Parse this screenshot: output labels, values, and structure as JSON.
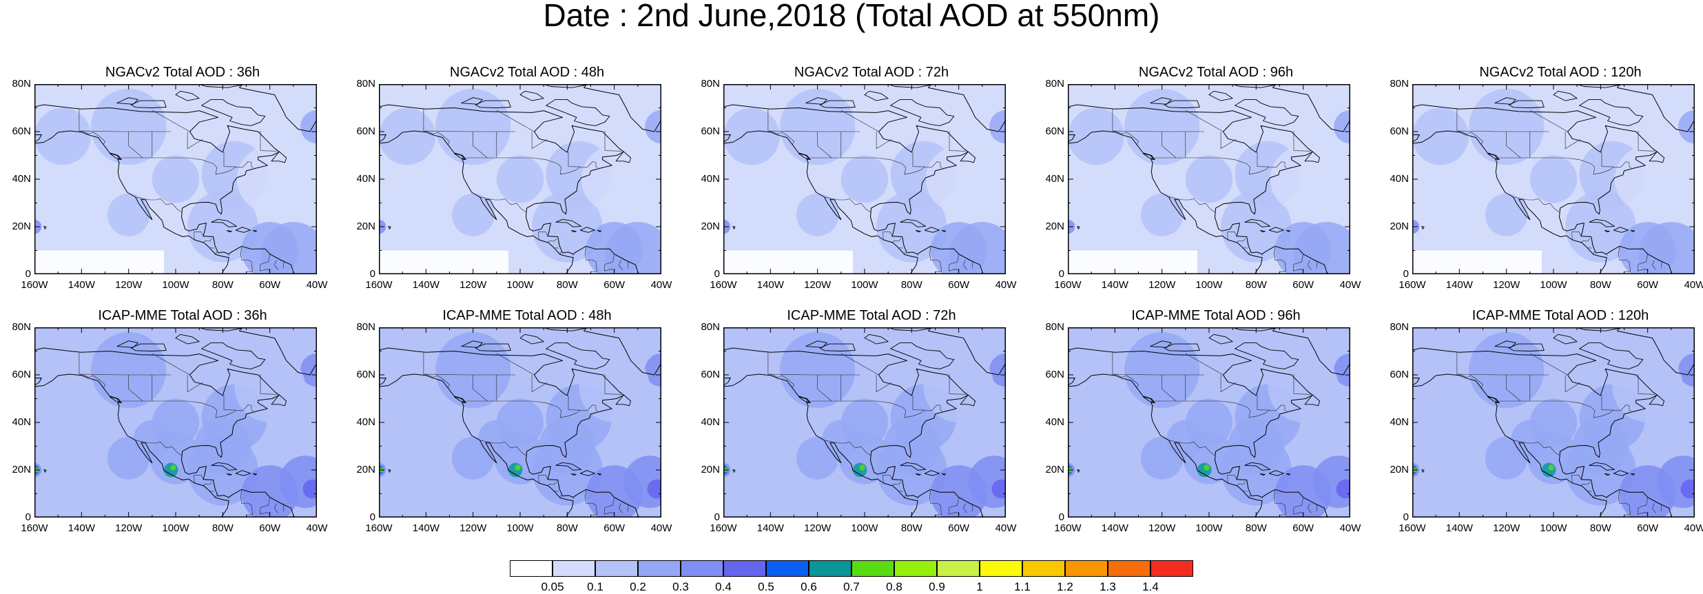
{
  "title": "Date : 2nd June,2018 (Total AOD at 550nm)",
  "panels": [
    {
      "title": "NGACv2 Total AOD : 36h",
      "model": "NGACv2",
      "lead": "36h"
    },
    {
      "title": "NGACv2 Total AOD : 48h",
      "model": "NGACv2",
      "lead": "48h"
    },
    {
      "title": "NGACv2 Total AOD : 72h",
      "model": "NGACv2",
      "lead": "72h"
    },
    {
      "title": "NGACv2 Total AOD : 96h",
      "model": "NGACv2",
      "lead": "96h"
    },
    {
      "title": "NGACv2 Total AOD : 120h",
      "model": "NGACv2",
      "lead": "120h"
    },
    {
      "title": "ICAP-MME Total AOD : 36h",
      "model": "ICAP-MME",
      "lead": "36h"
    },
    {
      "title": "ICAP-MME Total AOD : 48h",
      "model": "ICAP-MME",
      "lead": "48h"
    },
    {
      "title": "ICAP-MME Total AOD : 72h",
      "model": "ICAP-MME",
      "lead": "72h"
    },
    {
      "title": "ICAP-MME Total AOD : 96h",
      "model": "ICAP-MME",
      "lead": "96h"
    },
    {
      "title": "ICAP-MME Total AOD : 120h",
      "model": "ICAP-MME",
      "lead": "120h"
    }
  ],
  "axes": {
    "lat_labels": [
      "80N",
      "60N",
      "40N",
      "20N",
      "0"
    ],
    "lon_labels": [
      "160W",
      "140W",
      "120W",
      "100W",
      "80W",
      "60W",
      "40W"
    ],
    "lat_range": [
      0,
      80
    ],
    "lon_range": [
      -160,
      -40
    ]
  },
  "colorbar": {
    "labels": [
      "0.05",
      "0.1",
      "0.2",
      "0.3",
      "0.4",
      "0.5",
      "0.6",
      "0.7",
      "0.8",
      "0.9",
      "1",
      "1.1",
      "1.2",
      "1.3",
      "1.4"
    ],
    "colors": [
      "#ffffff",
      "#d4dcfb",
      "#b4c2f8",
      "#95a8f5",
      "#7f8ef2",
      "#6565ee",
      "#0a5ff0",
      "#0a9696",
      "#5adc14",
      "#96f00a",
      "#c8f046",
      "#fafa0a",
      "#fac800",
      "#fa9600",
      "#f56e0a",
      "#f52d1e"
    ]
  }
}
